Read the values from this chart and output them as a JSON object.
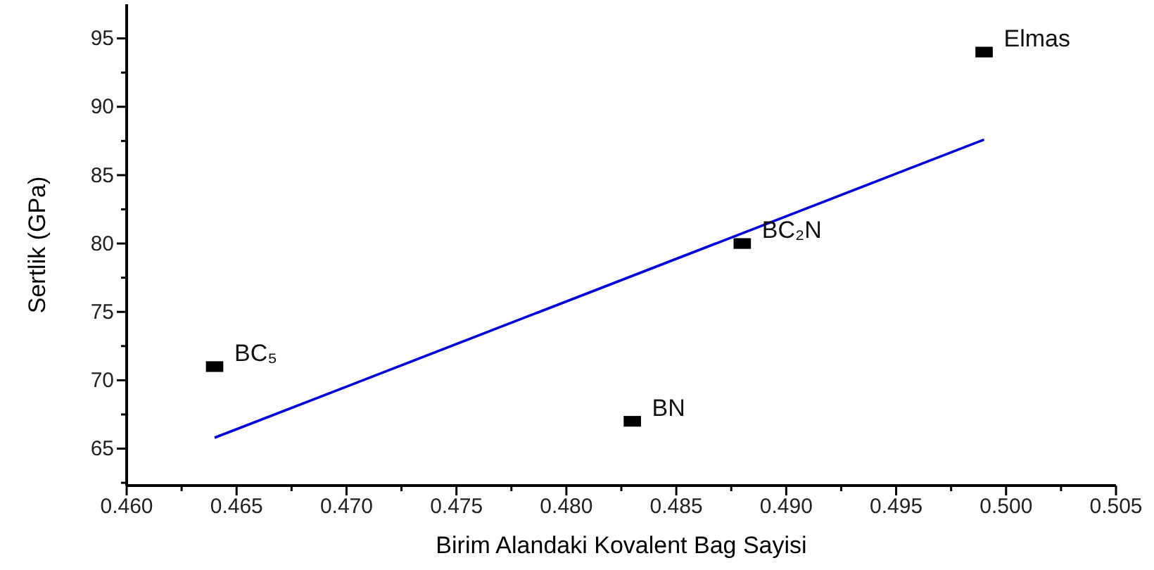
{
  "chart_data": {
    "type": "scatter",
    "xlabel": "Birim Alandaki Kovalent Bag Sayisi",
    "ylabel": "Sertlik (GPa)",
    "xlim": [
      0.46,
      0.505
    ],
    "ylim": [
      62.3,
      97.5
    ],
    "xticks": [
      {
        "value": 0.46,
        "label": "0.460"
      },
      {
        "value": 0.4625,
        "label": null
      },
      {
        "value": 0.465,
        "label": "0.465"
      },
      {
        "value": 0.4675,
        "label": null
      },
      {
        "value": 0.47,
        "label": "0.470"
      },
      {
        "value": 0.4725,
        "label": null
      },
      {
        "value": 0.475,
        "label": "0.475"
      },
      {
        "value": 0.4775,
        "label": null
      },
      {
        "value": 0.48,
        "label": "0.480"
      },
      {
        "value": 0.4825,
        "label": null
      },
      {
        "value": 0.485,
        "label": "0.485"
      },
      {
        "value": 0.4875,
        "label": null
      },
      {
        "value": 0.49,
        "label": "0.490"
      },
      {
        "value": 0.4925,
        "label": null
      },
      {
        "value": 0.495,
        "label": "0.495"
      },
      {
        "value": 0.4975,
        "label": null
      },
      {
        "value": 0.5,
        "label": "0.500"
      },
      {
        "value": 0.5025,
        "label": null
      },
      {
        "value": 0.505,
        "label": "0.505"
      }
    ],
    "yticks": [
      {
        "value": 62.5,
        "label": null
      },
      65,
      {
        "value": 67.5,
        "label": null
      },
      70,
      {
        "value": 72.5,
        "label": null
      },
      75,
      {
        "value": 77.5,
        "label": null
      },
      80,
      {
        "value": 82.5,
        "label": null
      },
      85,
      {
        "value": 87.5,
        "label": null
      },
      90,
      {
        "value": 92.5,
        "label": null
      },
      95
    ],
    "grid": false,
    "series": [
      {
        "marker": "square",
        "color": "#000000",
        "x": [
          0.464,
          0.483,
          0.488,
          0.499
        ],
        "values": [
          71,
          67,
          80,
          94
        ]
      },
      {
        "type": "line",
        "color": "#0000dd",
        "x": [
          0.464,
          0.499
        ],
        "values": [
          65.8,
          87.6
        ]
      }
    ],
    "annotations": [
      {
        "text": "BC₅",
        "x": 0.464,
        "y": 71
      },
      {
        "text": "BN",
        "x": 0.483,
        "y": 67
      },
      {
        "text": "BC₂N",
        "x": 0.488,
        "y": 80
      },
      {
        "text": "Elmas",
        "x": 0.499,
        "y": 94
      }
    ]
  }
}
